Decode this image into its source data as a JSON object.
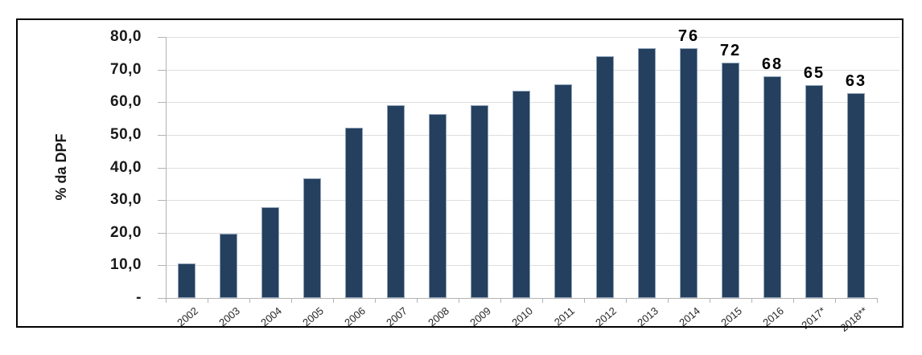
{
  "chart_data": {
    "type": "bar",
    "title": "",
    "xlabel": "",
    "ylabel": "% da DPF",
    "categories": [
      "2002",
      "2003",
      "2004",
      "2005",
      "2006",
      "2007",
      "2008",
      "2009",
      "2010",
      "2011",
      "2012",
      "2013",
      "2014",
      "2015",
      "2016",
      "2017*",
      "2018**"
    ],
    "values": [
      10.5,
      19.7,
      27.9,
      36.7,
      52.3,
      59.2,
      56.4,
      59.0,
      63.4,
      65.5,
      74.1,
      76.5,
      76.5,
      72.2,
      67.9,
      65.2,
      62.8
    ],
    "bar_labels": [
      "",
      "",
      "",
      "",
      "",
      "",
      "",
      "",
      "",
      "",
      "",
      "",
      "76",
      "72",
      "68",
      "65",
      "63"
    ],
    "yticks": [
      {
        "value": 80,
        "label": "80,0"
      },
      {
        "value": 70,
        "label": "70,0"
      },
      {
        "value": 60,
        "label": "60,0"
      },
      {
        "value": 50,
        "label": "50,0"
      },
      {
        "value": 40,
        "label": "40,0"
      },
      {
        "value": 30,
        "label": "30,0"
      },
      {
        "value": 20,
        "label": "20,0"
      },
      {
        "value": 10,
        "label": "10,0"
      },
      {
        "value": 0,
        "label": "-"
      }
    ],
    "ylim": [
      0,
      80
    ],
    "grid": "horizontal",
    "legend": "none",
    "colors": {
      "bar_fill": "#24405e",
      "bar_border": "#8fa2b8",
      "gridline": "#dedede",
      "axis": "#b3b3b3",
      "tick_text": "#1a1a1a",
      "bar_label_text": "#000000",
      "frame_border": "#000000",
      "background": "#ffffff"
    }
  }
}
